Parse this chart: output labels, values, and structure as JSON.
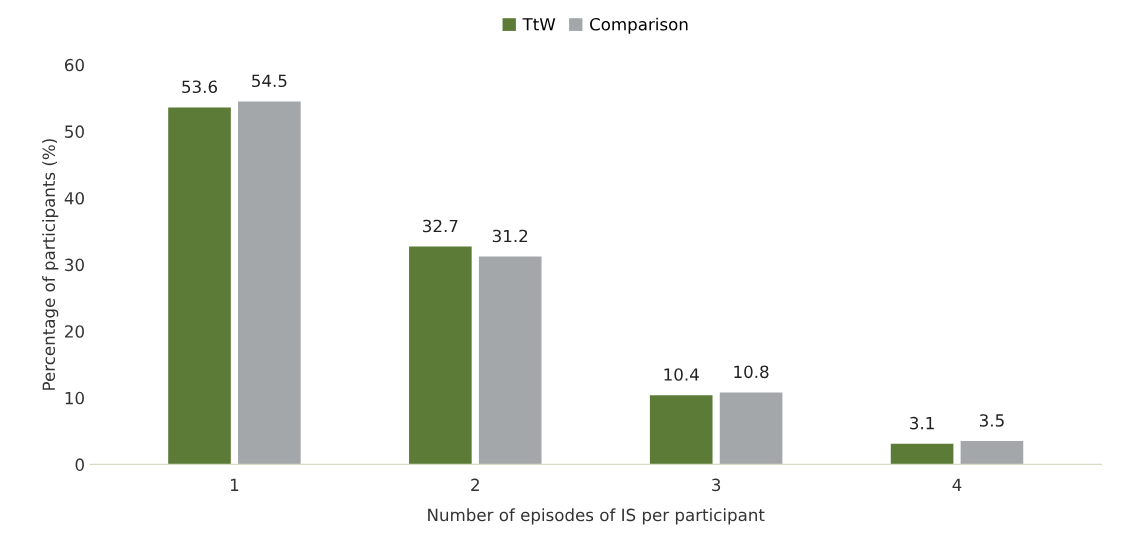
{
  "chart_data": {
    "type": "bar",
    "xlabel": "Number of episodes of IS per participant",
    "ylabel": "Percentage of participants (%)",
    "categories": [
      "1",
      "2",
      "3",
      "4"
    ],
    "series": [
      {
        "name": "TtW",
        "color": "#5b7b36",
        "values": [
          53.6,
          32.7,
          10.4,
          3.1
        ]
      },
      {
        "name": "Comparison",
        "color": "#a4a7aa",
        "values": [
          54.5,
          31.2,
          10.8,
          3.5
        ]
      }
    ],
    "ylim": [
      0,
      60
    ],
    "yticks": [
      0,
      10,
      20,
      30,
      40,
      50,
      60
    ],
    "grid": false,
    "legend": "top",
    "data_labels": true
  }
}
